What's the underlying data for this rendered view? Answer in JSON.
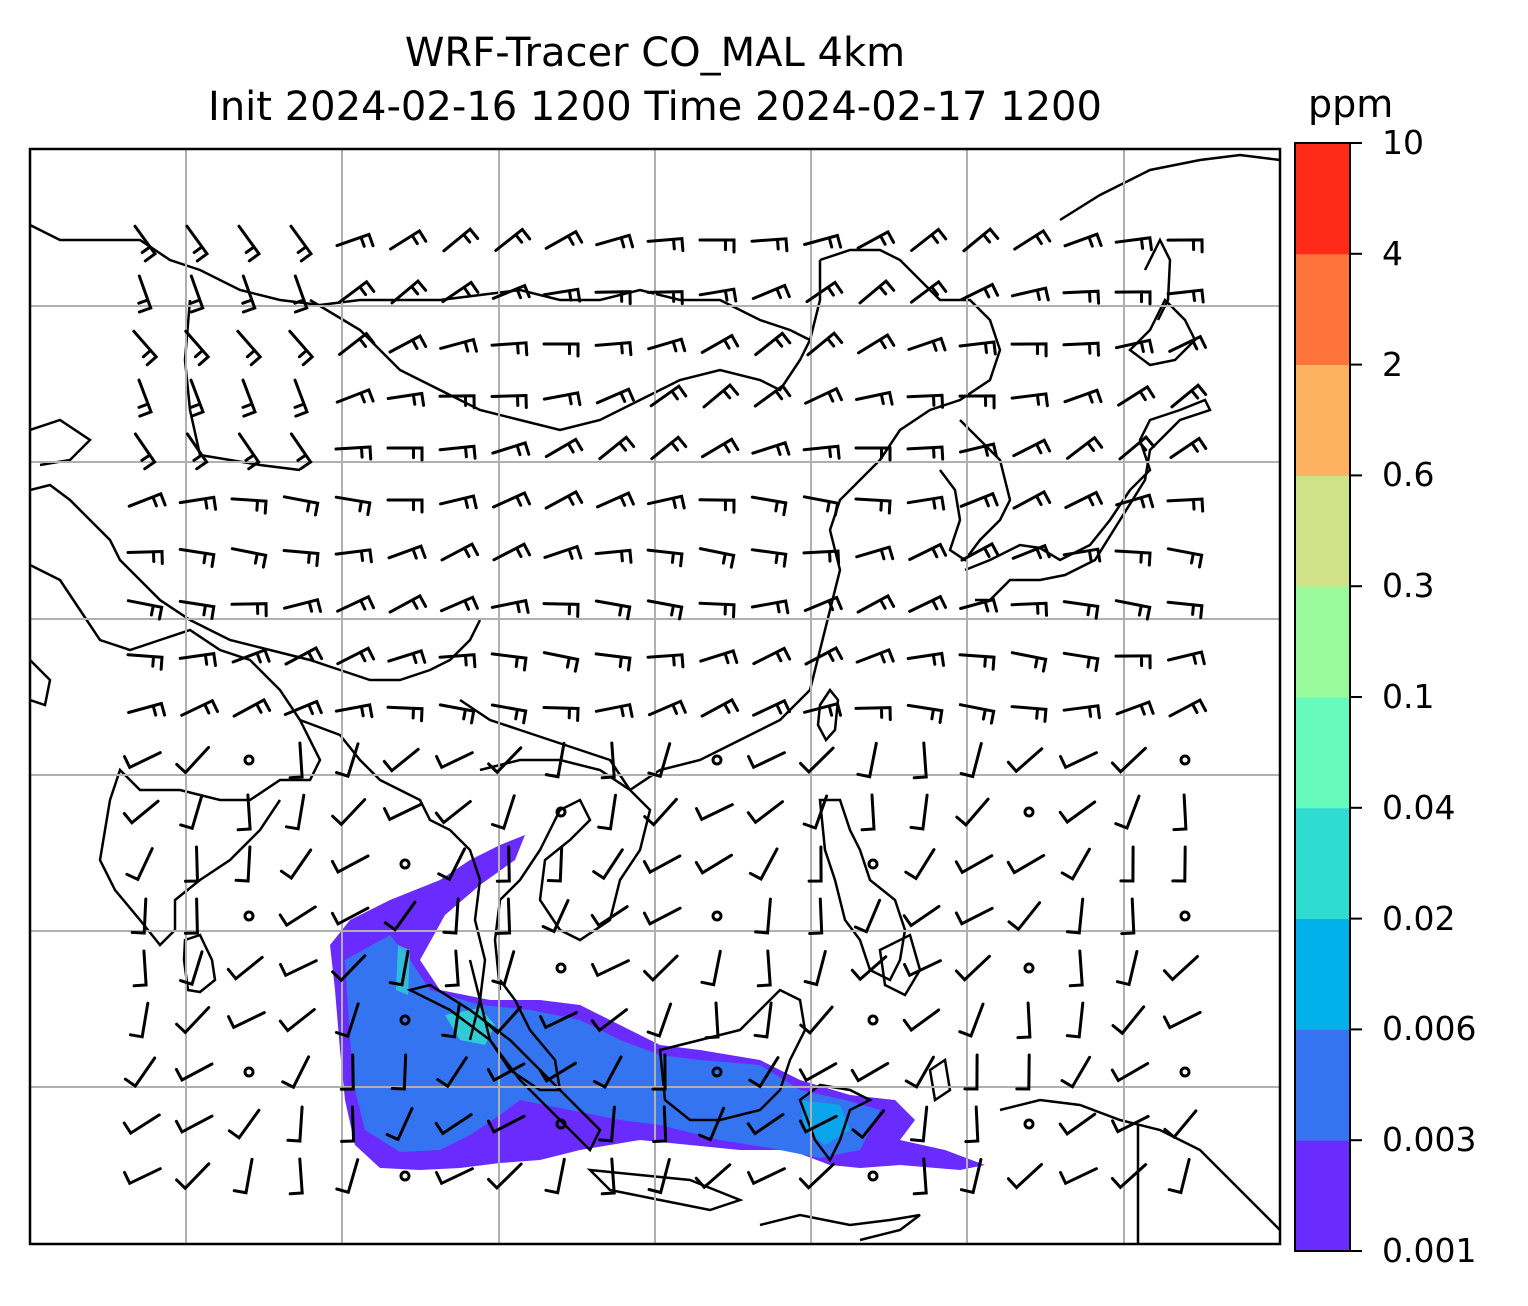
{
  "title": {
    "line1": "WRF-Tracer CO_MAL 4km",
    "line2": "Init 2024-02-16 1200 Time 2024-02-17 1200"
  },
  "colorbar": {
    "unit": "ppm",
    "levels": [
      "0.001",
      "0.003",
      "0.006",
      "0.02",
      "0.04",
      "0.1",
      "0.3",
      "0.6",
      "2",
      "4",
      "10"
    ],
    "colors": [
      "#6a2bff",
      "#3574f0",
      "#00b1ea",
      "#2fdcd1",
      "#66fbbd",
      "#99fa9c",
      "#cfe288",
      "#fdb262",
      "#ff743b",
      "#ff2b18"
    ]
  },
  "map": {
    "tracer_color_light": "#6a2bff",
    "tracer_color_mid": "#3574f0",
    "tracer_color_high": "#2fdcd1",
    "grid_color": "#b0b0b0",
    "coast_color": "#000000"
  }
}
